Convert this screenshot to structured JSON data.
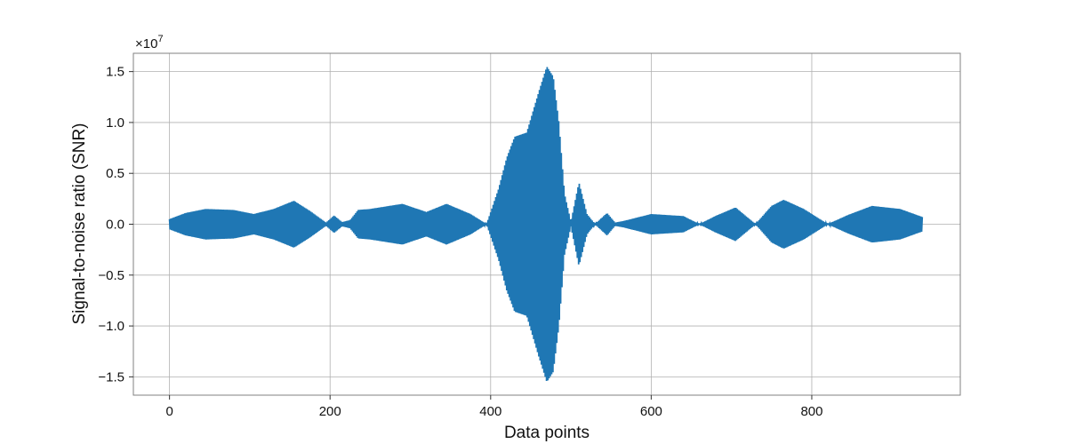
{
  "chart_data": {
    "type": "line",
    "xlabel": "Data points",
    "ylabel": "Signal-to-noise ratio (SNR)",
    "y_multiplier_label": "×10",
    "y_multiplier_exponent": "7",
    "xlim": [
      -45,
      985
    ],
    "ylim": [
      -16800000,
      16800000
    ],
    "xticks": [
      0,
      200,
      400,
      600,
      800
    ],
    "xtick_labels": [
      "0",
      "200",
      "400",
      "600",
      "800"
    ],
    "yticks": [
      -15000000,
      -10000000,
      -5000000,
      0,
      5000000,
      10000000,
      15000000
    ],
    "ytick_labels": [
      "−1.5",
      "−1.0",
      "−0.5",
      "0.0",
      "0.5",
      "1.0",
      "1.5"
    ],
    "grid": true,
    "series": [
      {
        "color": "#1f77b4",
        "envelope": {
          "x": [
            0,
            20,
            45,
            80,
            105,
            130,
            155,
            175,
            195,
            205,
            215,
            225,
            235,
            250,
            290,
            320,
            345,
            375,
            395,
            410,
            420,
            430,
            445,
            460,
            470,
            478,
            485,
            492,
            500,
            510,
            520,
            530,
            545,
            555,
            565,
            580,
            600,
            620,
            640,
            660,
            680,
            705,
            730,
            750,
            765,
            790,
            820,
            845,
            875,
            910,
            938
          ],
          "upper": [
            500000,
            1100000,
            1500000,
            1400000,
            1000000,
            1500000,
            2300000,
            1300000,
            150000,
            850000,
            200000,
            400000,
            1400000,
            1500000,
            2000000,
            1200000,
            2000000,
            1000000,
            0,
            3500000,
            6500000,
            8600000,
            9000000,
            13000000,
            15500000,
            14500000,
            10000000,
            3000000,
            200000,
            4100000,
            1000000,
            0,
            1100000,
            150000,
            300000,
            600000,
            1000000,
            900000,
            800000,
            0,
            800000,
            1650000,
            0,
            1800000,
            2400000,
            1500000,
            0,
            900000,
            1800000,
            1500000,
            700000
          ],
          "lower": [
            -500000,
            -1100000,
            -1500000,
            -1400000,
            -1000000,
            -1500000,
            -2300000,
            -1300000,
            -150000,
            -850000,
            -200000,
            -400000,
            -1400000,
            -1500000,
            -2000000,
            -1200000,
            -2000000,
            -1000000,
            0,
            -3500000,
            -6500000,
            -8600000,
            -9000000,
            -13000000,
            -15500000,
            -14500000,
            -10000000,
            -3000000,
            -200000,
            -4100000,
            -1000000,
            0,
            -1100000,
            -150000,
            -300000,
            -600000,
            -1000000,
            -900000,
            -800000,
            0,
            -800000,
            -1650000,
            0,
            -1800000,
            -2400000,
            -1500000,
            0,
            -900000,
            -1800000,
            -1500000,
            -700000
          ]
        }
      }
    ]
  }
}
